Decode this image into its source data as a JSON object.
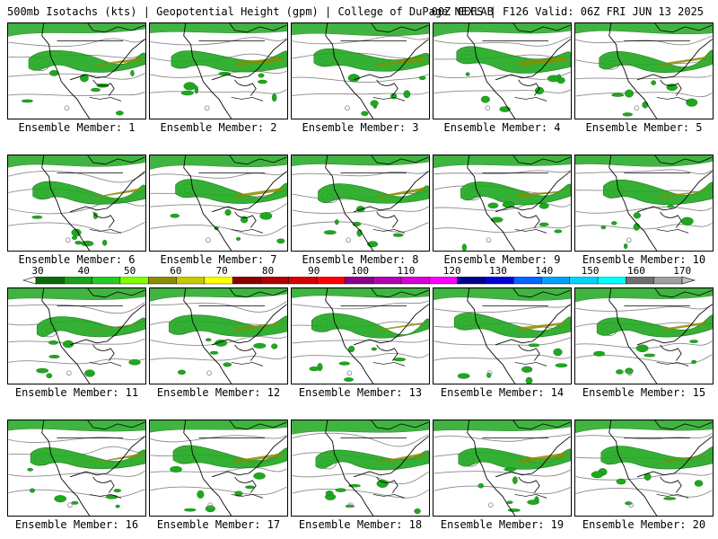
{
  "header": {
    "left_text": "500mb Isotachs (kts) | Geopotential Height (gpm) | College of DuPage NEXLAB",
    "right_text": "00Z GEFS | F126 Valid: 06Z FRI JUN 13 2025"
  },
  "members": [
    {
      "label": "Ensemble Member: 1"
    },
    {
      "label": "Ensemble Member: 2"
    },
    {
      "label": "Ensemble Member: 3"
    },
    {
      "label": "Ensemble Member: 4"
    },
    {
      "label": "Ensemble Member: 5"
    },
    {
      "label": "Ensemble Member: 6"
    },
    {
      "label": "Ensemble Member: 7"
    },
    {
      "label": "Ensemble Member: 8"
    },
    {
      "label": "Ensemble Member: 9"
    },
    {
      "label": "Ensemble Member: 10"
    },
    {
      "label": "Ensemble Member: 11"
    },
    {
      "label": "Ensemble Member: 12"
    },
    {
      "label": "Ensemble Member: 13"
    },
    {
      "label": "Ensemble Member: 14"
    },
    {
      "label": "Ensemble Member: 15"
    },
    {
      "label": "Ensemble Member: 16"
    },
    {
      "label": "Ensemble Member: 17"
    },
    {
      "label": "Ensemble Member: 18"
    },
    {
      "label": "Ensemble Member: 19"
    },
    {
      "label": "Ensemble Member: 20"
    }
  ],
  "colorbar": {
    "ticks": [
      "30",
      "40",
      "50",
      "60",
      "70",
      "80",
      "90",
      "100",
      "110",
      "120",
      "130",
      "140",
      "150",
      "160",
      "170"
    ],
    "colors": [
      "#0b6b0b",
      "#1aa01a",
      "#22cc22",
      "#7fff00",
      "#8c8c00",
      "#c8c800",
      "#ffff00",
      "#8b0000",
      "#b00000",
      "#d40000",
      "#ff0000",
      "#8b008b",
      "#b000b0",
      "#d400d4",
      "#ff00ff",
      "#00008b",
      "#0000d4",
      "#0064ff",
      "#00a0ff",
      "#00d4ff",
      "#00ffff",
      "#6e6e6e",
      "#a0a0a0"
    ],
    "accent_wind": "#1aa01a",
    "contour_color": "#808080"
  }
}
